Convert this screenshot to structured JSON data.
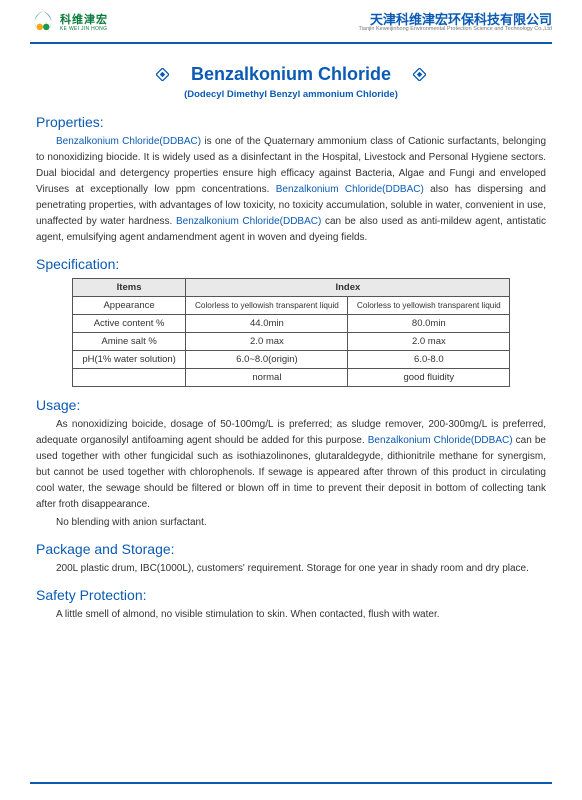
{
  "header": {
    "logo_cn": "科维津宏",
    "logo_en": "KE WEI JIN HONG",
    "company_cn": "天津科维津宏环保科技有限公司",
    "company_en": "Tianjin Keweijinhong Environmental Protection Science and Technology Co.,Ltd"
  },
  "title": "Benzalkonium Chloride",
  "subtitle": "(Dodecyl Dimethyl Benzyl ammonium Chloride)",
  "sections": {
    "properties_h": "Properties:",
    "properties_hl1": "Benzalkonium Chloride(DDBAC)",
    "properties_t1": " is one of the Quaternary ammonium class of Cationic surfactants, belonging to nonoxidizing biocide. It is widely used as a disinfectant in the Hospital, Livestock and Personal Hygiene sectors. Dual biocidal and detergency properties ensure high efficacy against Bacteria, Algae and Fungi and enveloped Viruses at exceptionally low ppm concentrations. ",
    "properties_hl2": "Benzalkonium Chloride(DDBAC)",
    "properties_t2": " also has dispersing and penetrating properties, with advantages of low toxicity, no toxicity accumulation, soluble in water, convenient in use, unaffected by water hardness. ",
    "properties_hl3": "Benzalkonium Chloride(DDBAC)",
    "properties_t3": " can be also used as anti-mildew agent, antistatic agent, emulsifying agent andamendment agent in woven and dyeing fields.",
    "specification_h": "Specification:",
    "usage_h": "Usage:",
    "usage_t1": "As nonoxidizing boicide, dosage of 50-100mg/L is preferred; as sludge remover, 200-300mg/L is preferred, adequate organosilyl antifoaming agent should be added for this purpose. ",
    "usage_hl1": "Benzalkonium Chloride(DDBAC)",
    "usage_t2": " can be used together with other fungicidal such as isothiazolinones, glutaraldegyde, dithionitrile methane for synergism, but cannot be used together with chlorophenols. If sewage is appeared after thrown of this product in circulating cool water, the sewage should be filtered or blown off in time to prevent their deposit in bottom of collecting tank after froth disappearance.",
    "usage_t3": "No blending with anion surfactant.",
    "package_h": "Package and Storage:",
    "package_t": "200L plastic drum, IBC(1000L), customers' requirement. Storage for one year in shady room and dry place.",
    "safety_h": "Safety Protection:",
    "safety_t": "A little smell of almond, no visible stimulation to skin. When contacted, flush with water."
  },
  "spec_table": {
    "th_items": "Items",
    "th_index": "Index",
    "rows": [
      {
        "item": "Appearance",
        "a": "Colorless to yellowish transparent liquid",
        "b": "Colorless to yellowish transparent liquid",
        "small": true
      },
      {
        "item": "Active content %",
        "a": "44.0min",
        "b": "80.0min"
      },
      {
        "item": "Amine salt  %",
        "a": "2.0 max",
        "b": "2.0 max"
      },
      {
        "item": "pH(1%  water solution)",
        "a": "6.0~8.0(origin)",
        "b": "6.0-8.0"
      },
      {
        "item": "",
        "a": "normal",
        "b": "good fluidity"
      }
    ]
  },
  "colors": {
    "brand_blue": "#0b5bb5",
    "brand_green": "#0a7a3a",
    "text": "#333333",
    "table_header_bg": "#e9e9e9",
    "table_border": "#555555",
    "page_bg": "#ffffff"
  },
  "typography": {
    "title_pt": 18,
    "section_h_pt": 14,
    "body_pt": 10,
    "subtitle_pt": 9.5,
    "table_pt": 9.5
  }
}
